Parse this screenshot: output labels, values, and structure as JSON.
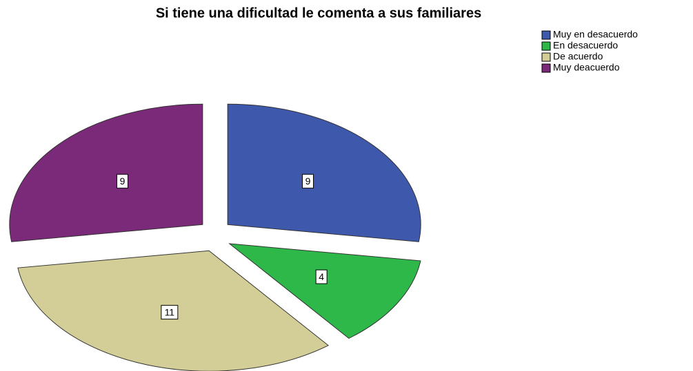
{
  "chart_data": {
    "type": "pie",
    "title": "Si tiene una dificultad le comenta a sus familiares",
    "categories": [
      "Muy en desacuerdo",
      "En desacuerdo",
      "De acuerdo",
      "Muy deacuerdo"
    ],
    "values": [
      9,
      4,
      11,
      9
    ],
    "colors": [
      "#3e58ac",
      "#2eb84a",
      "#d3ce97",
      "#7a2a78"
    ],
    "legend": "upper right"
  }
}
